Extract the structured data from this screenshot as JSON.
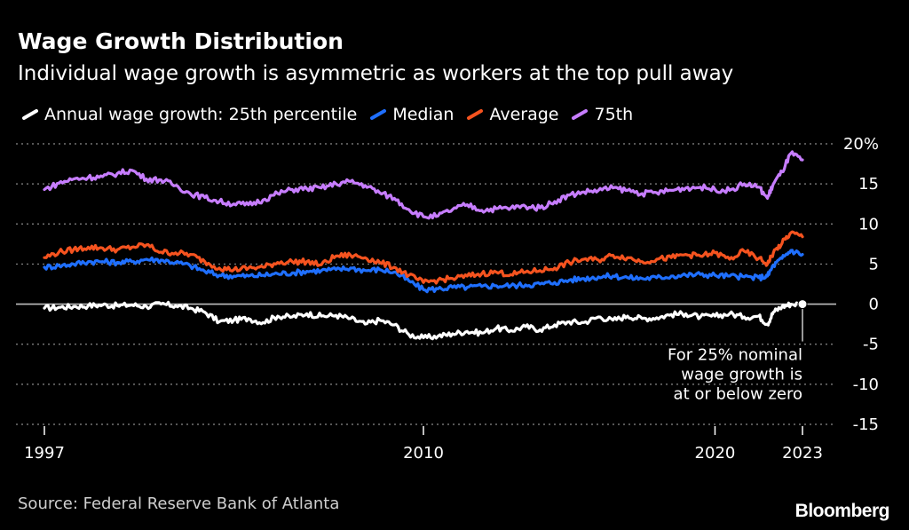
{
  "chart_data": {
    "type": "line",
    "title": "Wage Growth Distribution",
    "subtitle": "Individual wage growth is asymmetric as workers at the top pull away",
    "source": "Source: Federal Reserve Bank of Atlanta",
    "brand": "Bloomberg",
    "x_range": [
      1997,
      2023.5
    ],
    "ylim": [
      -15,
      20
    ],
    "y_ticks": [
      20,
      15,
      10,
      5,
      0,
      -5,
      -10,
      -15
    ],
    "y_tick_labels": [
      "20%",
      "15",
      "10",
      "5",
      "0",
      "-5",
      "-10",
      "-15"
    ],
    "x_ticks": [
      1997,
      2010,
      2020,
      2023
    ],
    "x_tick_labels": [
      "1997",
      "2010",
      "2020",
      "2023"
    ],
    "annotation": {
      "lines": [
        "For 25% nominal",
        "wage growth is",
        "at or below zero"
      ],
      "x": 2023.0,
      "y": 0
    },
    "series": [
      {
        "name": "Annual wage growth: 25th percentile",
        "color": "#ffffff",
        "points": [
          [
            1997.0,
            -0.5
          ],
          [
            1997.5,
            -0.4
          ],
          [
            1998.0,
            -0.3
          ],
          [
            1998.5,
            -0.2
          ],
          [
            1999.0,
            -0.1
          ],
          [
            1999.5,
            -0.2
          ],
          [
            2000.0,
            -0.1
          ],
          [
            2000.5,
            -0.3
          ],
          [
            2001.0,
            0.0
          ],
          [
            2001.5,
            -0.2
          ],
          [
            2002.0,
            -0.5
          ],
          [
            2002.5,
            -1.0
          ],
          [
            2003.0,
            -2.2
          ],
          [
            2003.5,
            -2.0
          ],
          [
            2004.0,
            -1.8
          ],
          [
            2004.5,
            -2.3
          ],
          [
            2005.0,
            -1.5
          ],
          [
            2005.5,
            -1.6
          ],
          [
            2006.0,
            -1.2
          ],
          [
            2006.5,
            -1.5
          ],
          [
            2007.0,
            -1.4
          ],
          [
            2007.5,
            -1.8
          ],
          [
            2008.0,
            -2.5
          ],
          [
            2008.5,
            -2.0
          ],
          [
            2009.0,
            -2.6
          ],
          [
            2009.5,
            -3.8
          ],
          [
            2010.0,
            -4.2
          ],
          [
            2010.5,
            -4.0
          ],
          [
            2011.0,
            -3.7
          ],
          [
            2011.5,
            -3.4
          ],
          [
            2012.0,
            -3.6
          ],
          [
            2012.5,
            -3.0
          ],
          [
            2013.0,
            -3.3
          ],
          [
            2013.5,
            -2.8
          ],
          [
            2014.0,
            -3.2
          ],
          [
            2014.5,
            -2.6
          ],
          [
            2015.0,
            -2.2
          ],
          [
            2015.5,
            -2.3
          ],
          [
            2016.0,
            -1.6
          ],
          [
            2016.5,
            -2.0
          ],
          [
            2017.0,
            -1.5
          ],
          [
            2017.5,
            -1.8
          ],
          [
            2018.0,
            -1.7
          ],
          [
            2018.5,
            -1.3
          ],
          [
            2019.0,
            -1.2
          ],
          [
            2019.5,
            -1.6
          ],
          [
            2020.0,
            -1.5
          ],
          [
            2020.5,
            -1.2
          ],
          [
            2021.0,
            -1.6
          ],
          [
            2021.5,
            -1.5
          ],
          [
            2021.8,
            -2.5
          ],
          [
            2022.0,
            -1.0
          ],
          [
            2022.3,
            -0.3
          ],
          [
            2022.6,
            0.0
          ],
          [
            2023.0,
            0.0
          ]
        ]
      },
      {
        "name": "Median",
        "color": "#1f6fff",
        "points": [
          [
            1997.0,
            4.6
          ],
          [
            1997.5,
            4.8
          ],
          [
            1998.0,
            5.0
          ],
          [
            1998.5,
            5.3
          ],
          [
            1999.0,
            5.3
          ],
          [
            1999.5,
            5.2
          ],
          [
            2000.0,
            5.3
          ],
          [
            2000.5,
            5.6
          ],
          [
            2001.0,
            5.5
          ],
          [
            2001.5,
            5.2
          ],
          [
            2002.0,
            4.8
          ],
          [
            2002.5,
            4.1
          ],
          [
            2003.0,
            3.6
          ],
          [
            2003.5,
            3.5
          ],
          [
            2004.0,
            3.5
          ],
          [
            2004.5,
            3.6
          ],
          [
            2005.0,
            3.8
          ],
          [
            2005.5,
            3.9
          ],
          [
            2006.0,
            4.1
          ],
          [
            2006.5,
            4.2
          ],
          [
            2007.0,
            4.3
          ],
          [
            2007.5,
            4.5
          ],
          [
            2008.0,
            4.2
          ],
          [
            2008.5,
            4.3
          ],
          [
            2009.0,
            4.0
          ],
          [
            2009.5,
            2.9
          ],
          [
            2010.0,
            1.8
          ],
          [
            2010.5,
            1.9
          ],
          [
            2011.0,
            2.1
          ],
          [
            2011.5,
            2.1
          ],
          [
            2012.0,
            2.2
          ],
          [
            2012.5,
            2.3
          ],
          [
            2013.0,
            2.3
          ],
          [
            2013.5,
            2.4
          ],
          [
            2014.0,
            2.5
          ],
          [
            2014.5,
            2.7
          ],
          [
            2015.0,
            3.0
          ],
          [
            2015.5,
            3.2
          ],
          [
            2016.0,
            3.4
          ],
          [
            2016.5,
            3.5
          ],
          [
            2017.0,
            3.3
          ],
          [
            2017.5,
            3.2
          ],
          [
            2018.0,
            3.3
          ],
          [
            2018.5,
            3.5
          ],
          [
            2019.0,
            3.6
          ],
          [
            2019.5,
            3.7
          ],
          [
            2020.0,
            3.6
          ],
          [
            2020.5,
            3.5
          ],
          [
            2021.0,
            3.4
          ],
          [
            2021.5,
            3.3
          ],
          [
            2021.8,
            3.5
          ],
          [
            2022.0,
            4.8
          ],
          [
            2022.3,
            5.7
          ],
          [
            2022.6,
            6.7
          ],
          [
            2023.0,
            6.2
          ]
        ]
      },
      {
        "name": "Average",
        "color": "#f5531f",
        "points": [
          [
            1997.0,
            5.8
          ],
          [
            1997.5,
            6.5
          ],
          [
            1998.0,
            6.8
          ],
          [
            1998.5,
            7.1
          ],
          [
            1999.0,
            7.0
          ],
          [
            1999.5,
            6.8
          ],
          [
            2000.0,
            7.1
          ],
          [
            2000.5,
            7.4
          ],
          [
            2001.0,
            6.5
          ],
          [
            2001.5,
            6.4
          ],
          [
            2002.0,
            6.2
          ],
          [
            2002.5,
            5.3
          ],
          [
            2003.0,
            4.5
          ],
          [
            2003.5,
            4.3
          ],
          [
            2004.0,
            4.5
          ],
          [
            2004.5,
            4.6
          ],
          [
            2005.0,
            5.2
          ],
          [
            2005.5,
            5.3
          ],
          [
            2006.0,
            5.3
          ],
          [
            2006.5,
            4.9
          ],
          [
            2007.0,
            6.0
          ],
          [
            2007.5,
            6.1
          ],
          [
            2008.0,
            5.8
          ],
          [
            2008.5,
            5.2
          ],
          [
            2009.0,
            4.6
          ],
          [
            2009.5,
            3.6
          ],
          [
            2010.0,
            2.7
          ],
          [
            2010.5,
            3.0
          ],
          [
            2011.0,
            3.2
          ],
          [
            2011.5,
            3.5
          ],
          [
            2012.0,
            3.8
          ],
          [
            2012.5,
            4.0
          ],
          [
            2013.0,
            3.7
          ],
          [
            2013.5,
            4.0
          ],
          [
            2014.0,
            4.2
          ],
          [
            2014.5,
            4.5
          ],
          [
            2015.0,
            5.2
          ],
          [
            2015.5,
            5.6
          ],
          [
            2016.0,
            5.5
          ],
          [
            2016.5,
            6.1
          ],
          [
            2017.0,
            5.8
          ],
          [
            2017.5,
            5.3
          ],
          [
            2018.0,
            5.6
          ],
          [
            2018.5,
            5.8
          ],
          [
            2019.0,
            6.2
          ],
          [
            2019.5,
            6.0
          ],
          [
            2020.0,
            6.4
          ],
          [
            2020.5,
            5.6
          ],
          [
            2021.0,
            6.6
          ],
          [
            2021.5,
            5.7
          ],
          [
            2021.8,
            5.0
          ],
          [
            2022.0,
            6.4
          ],
          [
            2022.3,
            7.6
          ],
          [
            2022.6,
            8.9
          ],
          [
            2023.0,
            8.4
          ]
        ]
      },
      {
        "name": "75th",
        "color": "#c77dff",
        "points": [
          [
            1997.0,
            14.3
          ],
          [
            1997.5,
            15.1
          ],
          [
            1998.0,
            15.6
          ],
          [
            1998.5,
            15.8
          ],
          [
            1999.0,
            15.9
          ],
          [
            1999.5,
            16.3
          ],
          [
            2000.0,
            16.7
          ],
          [
            2000.5,
            15.6
          ],
          [
            2001.0,
            15.5
          ],
          [
            2001.5,
            14.8
          ],
          [
            2002.0,
            13.8
          ],
          [
            2002.5,
            13.3
          ],
          [
            2003.0,
            12.8
          ],
          [
            2003.5,
            12.5
          ],
          [
            2004.0,
            12.4
          ],
          [
            2004.5,
            13.0
          ],
          [
            2005.0,
            13.8
          ],
          [
            2005.5,
            14.3
          ],
          [
            2006.0,
            14.4
          ],
          [
            2006.5,
            14.5
          ],
          [
            2007.0,
            15.0
          ],
          [
            2007.5,
            15.3
          ],
          [
            2008.0,
            14.8
          ],
          [
            2008.5,
            13.9
          ],
          [
            2009.0,
            13.2
          ],
          [
            2009.5,
            11.8
          ],
          [
            2010.0,
            10.9
          ],
          [
            2010.5,
            11.0
          ],
          [
            2011.0,
            11.8
          ],
          [
            2011.5,
            12.4
          ],
          [
            2012.0,
            11.7
          ],
          [
            2012.5,
            11.9
          ],
          [
            2013.0,
            12.0
          ],
          [
            2013.5,
            12.2
          ],
          [
            2014.0,
            12.0
          ],
          [
            2014.5,
            12.8
          ],
          [
            2015.0,
            13.6
          ],
          [
            2015.5,
            14.0
          ],
          [
            2016.0,
            14.2
          ],
          [
            2016.5,
            14.5
          ],
          [
            2017.0,
            14.2
          ],
          [
            2017.5,
            13.8
          ],
          [
            2018.0,
            13.9
          ],
          [
            2018.5,
            14.2
          ],
          [
            2019.0,
            14.5
          ],
          [
            2019.5,
            14.6
          ],
          [
            2020.0,
            14.3
          ],
          [
            2020.5,
            14.2
          ],
          [
            2021.0,
            15.0
          ],
          [
            2021.5,
            14.6
          ],
          [
            2021.8,
            13.2
          ],
          [
            2022.0,
            15.0
          ],
          [
            2022.3,
            16.5
          ],
          [
            2022.6,
            18.8
          ],
          [
            2023.0,
            18.0
          ]
        ]
      }
    ]
  }
}
